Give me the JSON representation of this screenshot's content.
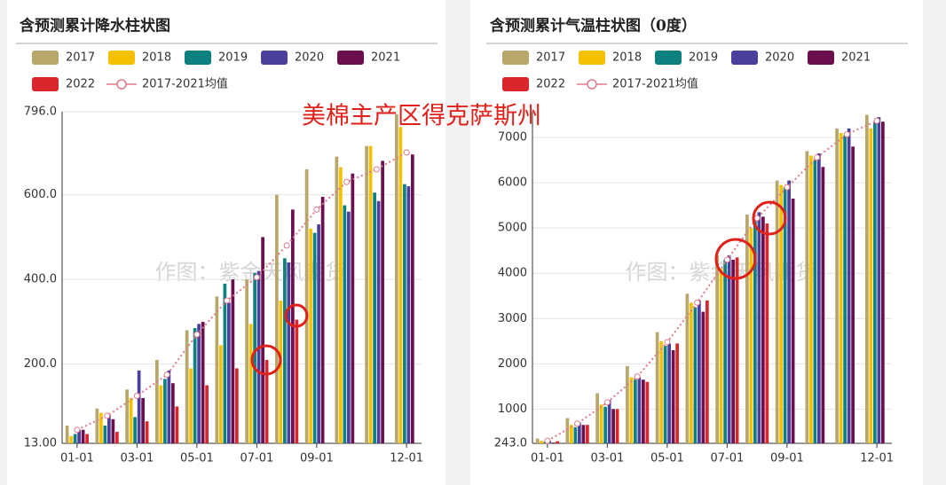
{
  "annotation": "美棉主产区得克萨斯州",
  "chart_data": [
    {
      "type": "bar",
      "title": "含预测累计降水柱状图",
      "watermark": "作图：紫金天风期货",
      "categories": [
        "01-01",
        null,
        "03-01",
        null,
        "05-01",
        null,
        "07-01",
        null,
        "09-01",
        null,
        null,
        "12-01"
      ],
      "series": [
        {
          "name": "2017",
          "color": "#b8a76a",
          "values": [
            55,
            95,
            140,
            210,
            280,
            360,
            400,
            600,
            660,
            690,
            715,
            790
          ]
        },
        {
          "name": "2018",
          "color": "#f5c000",
          "values": [
            30,
            85,
            120,
            150,
            190,
            245,
            295,
            350,
            520,
            665,
            715,
            760
          ]
        },
        {
          "name": "2019",
          "color": "#0f8080",
          "values": [
            35,
            55,
            75,
            165,
            285,
            390,
            415,
            450,
            510,
            575,
            605,
            625
          ]
        },
        {
          "name": "2020",
          "color": "#4a3f9a",
          "values": [
            45,
            80,
            185,
            185,
            295,
            345,
            420,
            440,
            530,
            560,
            585,
            620
          ]
        },
        {
          "name": "2021",
          "color": "#6b0f4f",
          "values": [
            45,
            70,
            120,
            155,
            300,
            400,
            500,
            565,
            595,
            650,
            680,
            695
          ]
        },
        {
          "name": "2022",
          "color": "#d9262c",
          "values": [
            35,
            40,
            65,
            100,
            150,
            190,
            210,
            305,
            null,
            null,
            null,
            null
          ]
        }
      ],
      "average": {
        "name": "2017-2021均值",
        "color": "#e07a8a",
        "values": [
          45,
          78,
          125,
          175,
          270,
          350,
          405,
          480,
          565,
          630,
          660,
          700
        ]
      },
      "ylim": [
        13,
        796
      ],
      "yticks": [
        {
          "value": 13,
          "label": "13.00"
        },
        {
          "value": 200,
          "label": "200.0"
        },
        {
          "value": 400,
          "label": "400.0"
        },
        {
          "value": 600,
          "label": "600.0"
        },
        {
          "value": 796,
          "label": "796.0"
        }
      ],
      "grid": true
    },
    {
      "type": "bar",
      "title": "含预测累计气温柱状图（0度）",
      "watermark": "作图：紫金天风期货",
      "categories": [
        "01-01",
        null,
        "03-01",
        null,
        "05-01",
        null,
        "07-01",
        null,
        "09-01",
        null,
        null,
        "12-01"
      ],
      "series": [
        {
          "name": "2017",
          "color": "#b8a76a",
          "values": [
            350,
            800,
            1350,
            1950,
            2700,
            3550,
            4400,
            5300,
            6050,
            6700,
            7200,
            7500
          ]
        },
        {
          "name": "2018",
          "color": "#f5c000",
          "values": [
            300,
            650,
            1100,
            1700,
            2500,
            3350,
            4100,
            5000,
            5950,
            6600,
            7100,
            7200
          ]
        },
        {
          "name": "2019",
          "color": "#0f8080",
          "values": [
            280,
            600,
            1050,
            1650,
            2400,
            3250,
            4300,
            5200,
            5900,
            6500,
            7050,
            7350
          ]
        },
        {
          "name": "2020",
          "color": "#4a3f9a",
          "values": [
            300,
            700,
            1200,
            1700,
            2450,
            3400,
            4400,
            5350,
            6050,
            6650,
            7200,
            7450
          ]
        },
        {
          "name": "2021",
          "color": "#6b0f4f",
          "values": [
            260,
            650,
            1000,
            1650,
            2300,
            3150,
            4300,
            5250,
            5650,
            6350,
            6800,
            7350
          ]
        },
        {
          "name": "2022",
          "color": "#d9262c",
          "values": [
            290,
            650,
            1000,
            1600,
            2450,
            3400,
            4350,
            5100,
            null,
            null,
            null,
            null
          ]
        }
      ],
      "average": {
        "name": "2017-2021均值",
        "color": "#e07a8a",
        "values": [
          300,
          680,
          1150,
          1720,
          2480,
          3350,
          4300,
          5220,
          5900,
          6560,
          7070,
          7370
        ]
      },
      "ylim": [
        243,
        7570
      ],
      "yticks": [
        {
          "value": 243,
          "label": "243.0"
        },
        1000,
        2000,
        3000,
        4000,
        5000,
        6000,
        7000
      ],
      "grid": true
    }
  ]
}
